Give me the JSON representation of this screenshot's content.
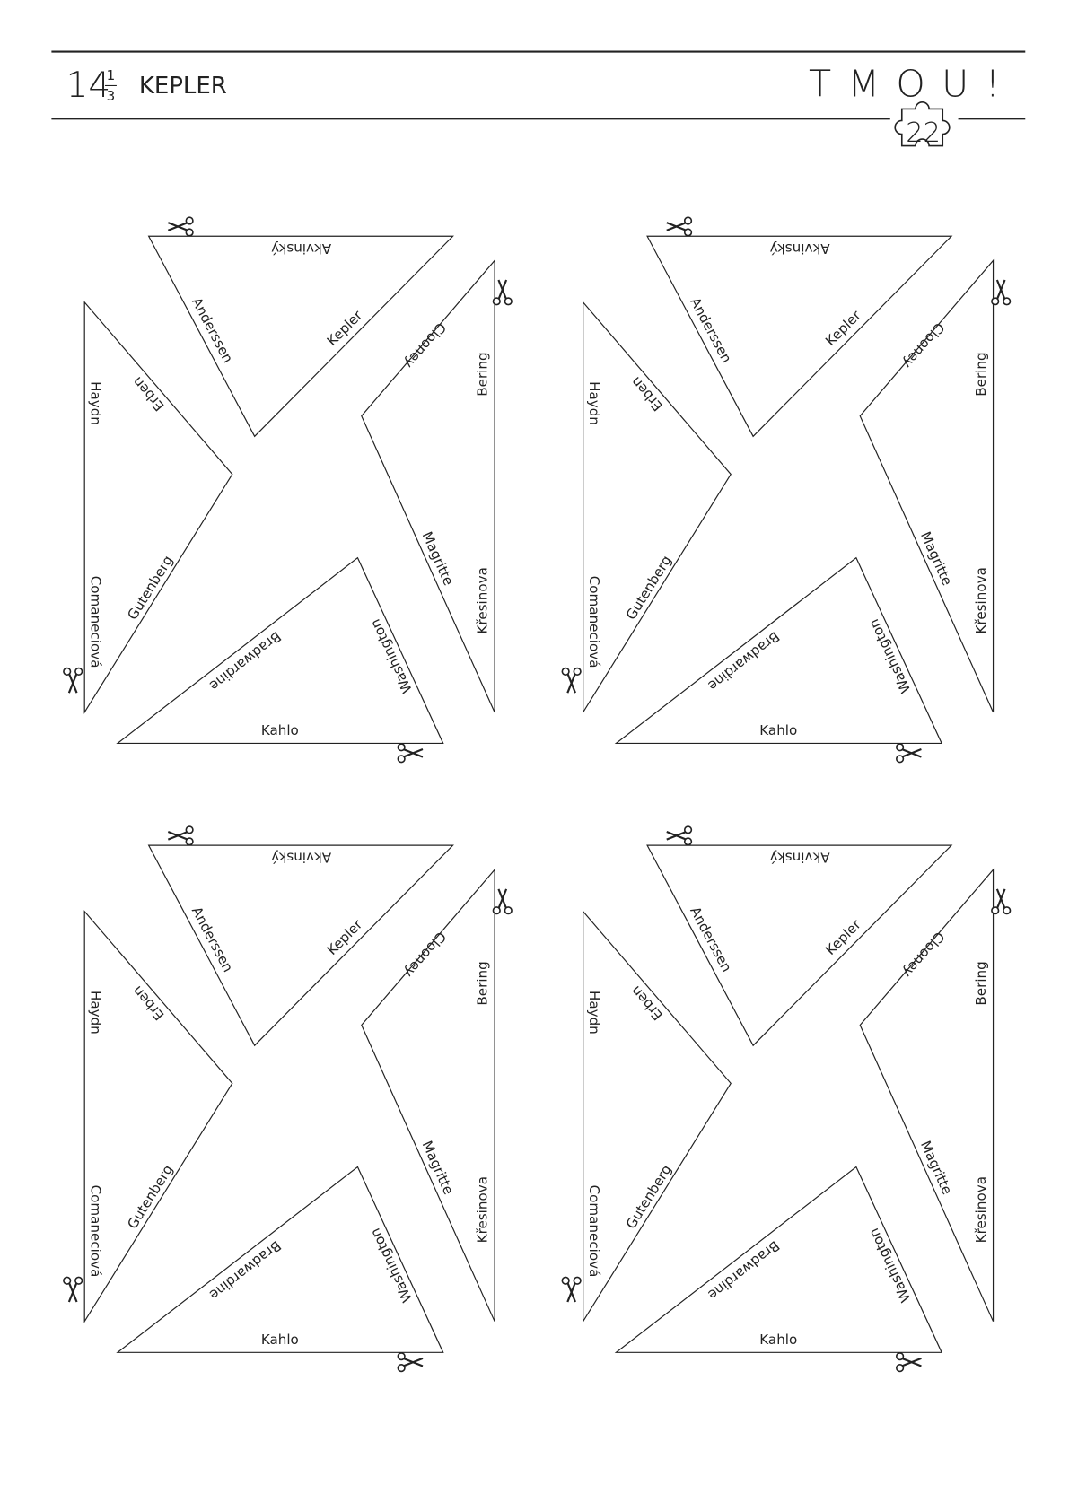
{
  "header": {
    "number": "14",
    "fraction_numerator": "1",
    "fraction_denominator": "3",
    "title": "KEPLER",
    "brand": "TMOU!",
    "badge": "22"
  },
  "panels": [
    {
      "labels": [
        "Akvinský",
        "Anderssen",
        "Kepler",
        "Haydn",
        "Erben",
        "Comaneciová",
        "Gutenberg",
        "Bering",
        "Křesinova",
        "Clooney",
        "Magritte",
        "Kahlo",
        "Washington",
        "Bradwardine"
      ]
    },
    {
      "labels": [
        "Akvinský",
        "Anderssen",
        "Kepler",
        "Haydn",
        "Erben",
        "Comaneciová",
        "Gutenberg",
        "Bering",
        "Křesinova",
        "Clooney",
        "Magritte",
        "Kahlo",
        "Washington",
        "Bradwardine"
      ]
    },
    {
      "labels": [
        "Akvinský",
        "Anderssen",
        "Kepler",
        "Haydn",
        "Erben",
        "Comaneciová",
        "Gutenberg",
        "Bering",
        "Křesinova",
        "Clooney",
        "Magritte",
        "Kahlo",
        "Washington",
        "Bradwardine"
      ]
    },
    {
      "labels": [
        "Akvinský",
        "Anderssen",
        "Kepler",
        "Haydn",
        "Erben",
        "Comaneciová",
        "Gutenberg",
        "Bering",
        "Křesinova",
        "Clooney",
        "Magritte",
        "Kahlo",
        "Washington",
        "Bradwardine"
      ]
    }
  ]
}
